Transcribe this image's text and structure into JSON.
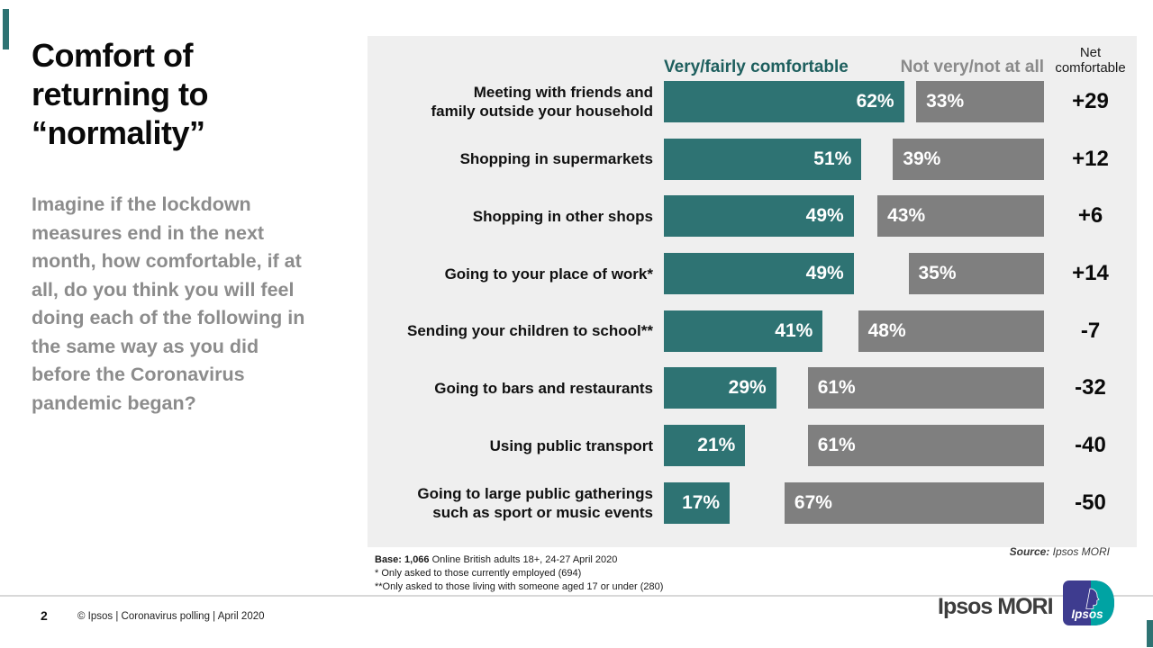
{
  "slide": {
    "title": "Comfort of\nreturning to\n“normality”",
    "subtitle": "Imagine if the lockdown\nmeasures end in the next\nmonth, how comfortable, if at\nall, do you think you will feel\ndoing each of the following in\nthe same way as you did\nbefore the Coronavirus\npandemic began?"
  },
  "chart_data": {
    "type": "bar",
    "orientation": "horizontal",
    "unit": "%",
    "legend": {
      "comfortable": "Very/fairly comfortable",
      "not_comfortable": "Not very/not at all",
      "net": "Net\ncomfortable"
    },
    "colors": {
      "comfortable": "#2E7373",
      "comfortable_header_text": "#1E5F5E",
      "not_comfortable": "#7F7F7F",
      "panel_background": "#EFEFEF"
    },
    "rows": [
      {
        "label": "Meeting with friends and\nfamily outside your household",
        "comfortable": 62,
        "not_comfortable": 33,
        "net": "+29"
      },
      {
        "label": "Shopping in supermarkets",
        "comfortable": 51,
        "not_comfortable": 39,
        "net": "+12"
      },
      {
        "label": "Shopping in other shops",
        "comfortable": 49,
        "not_comfortable": 43,
        "net": "+6"
      },
      {
        "label": "Going to your place of work*",
        "comfortable": 49,
        "not_comfortable": 35,
        "net": "+14"
      },
      {
        "label": "Sending your children to school**",
        "comfortable": 41,
        "not_comfortable": 48,
        "net": "-7"
      },
      {
        "label": "Going to bars and restaurants",
        "comfortable": 29,
        "not_comfortable": 61,
        "net": "-32"
      },
      {
        "label": "Using public transport",
        "comfortable": 21,
        "not_comfortable": 61,
        "net": "-40"
      },
      {
        "label": "Going to large public gatherings\nsuch as sport or music events",
        "comfortable": 17,
        "not_comfortable": 67,
        "net": "-50"
      }
    ]
  },
  "footnotes": {
    "base_bold": "Base: 1,066",
    "base_rest": " Online British adults 18+, 24-27 April 2020",
    "note1": "* Only asked to those currently employed (694)",
    "note2": "**Only asked to those living with someone aged 17 or under (280)"
  },
  "source": {
    "prefix": "Source:",
    "text": " Ipsos MORI"
  },
  "footer": {
    "page": "2",
    "text": "© Ipsos | Coronavirus polling | April 2020"
  },
  "branding": {
    "wordmark": "Ipsos MORI",
    "logo_text": "Ipsos"
  }
}
